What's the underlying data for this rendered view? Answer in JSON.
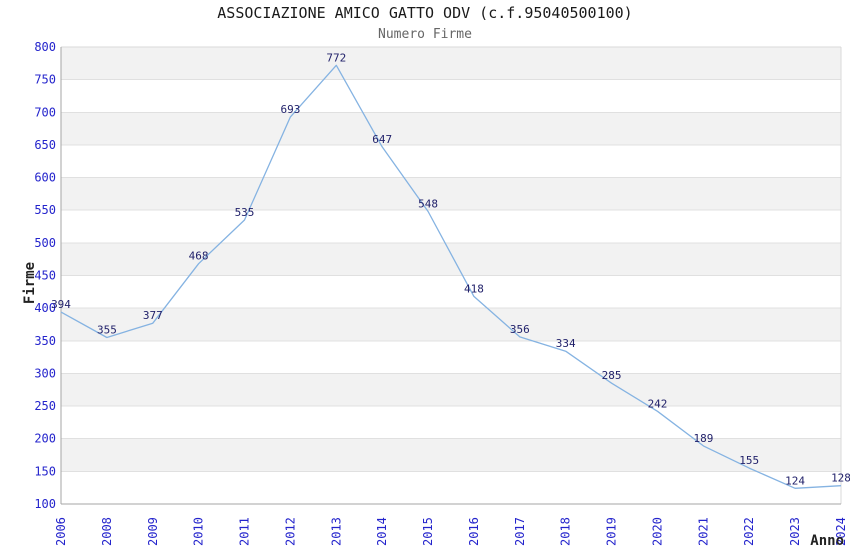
{
  "header": {
    "title": "ASSOCIAZIONE AMICO GATTO ODV (c.f.95040500100)",
    "subtitle": "Numero Firme"
  },
  "chart_data": {
    "type": "line",
    "title": "ASSOCIAZIONE AMICO GATTO ODV (c.f.95040500100)",
    "subtitle": "Numero Firme",
    "xlabel": "Anno",
    "ylabel": "Firme",
    "categories": [
      "2006",
      "2008",
      "2009",
      "2010",
      "2011",
      "2012",
      "2013",
      "2014",
      "2015",
      "2016",
      "2017",
      "2018",
      "2019",
      "2020",
      "2021",
      "2022",
      "2023",
      "2024"
    ],
    "values": [
      394,
      355,
      377,
      468,
      535,
      693,
      772,
      647,
      548,
      418,
      356,
      334,
      285,
      242,
      189,
      155,
      124,
      128
    ],
    "ylim": [
      100,
      800
    ],
    "yticks": [
      100,
      150,
      200,
      250,
      300,
      350,
      400,
      450,
      500,
      550,
      600,
      650,
      700,
      750,
      800
    ],
    "grid": true,
    "legend_position": "none",
    "band_fill": "alternating horizontal bands, gray starting at top interval",
    "colors": {
      "line": "#85b3e2",
      "tick_label": "#2424cc",
      "data_label": "#22226b",
      "band": "#f2f2f2",
      "gridline": "#e0e0e0",
      "axis": "#a6a6a6",
      "border": "#d9d9d9",
      "title": "#1a1a1a",
      "subtitle": "#666666",
      "axis_title": "#222222"
    }
  }
}
